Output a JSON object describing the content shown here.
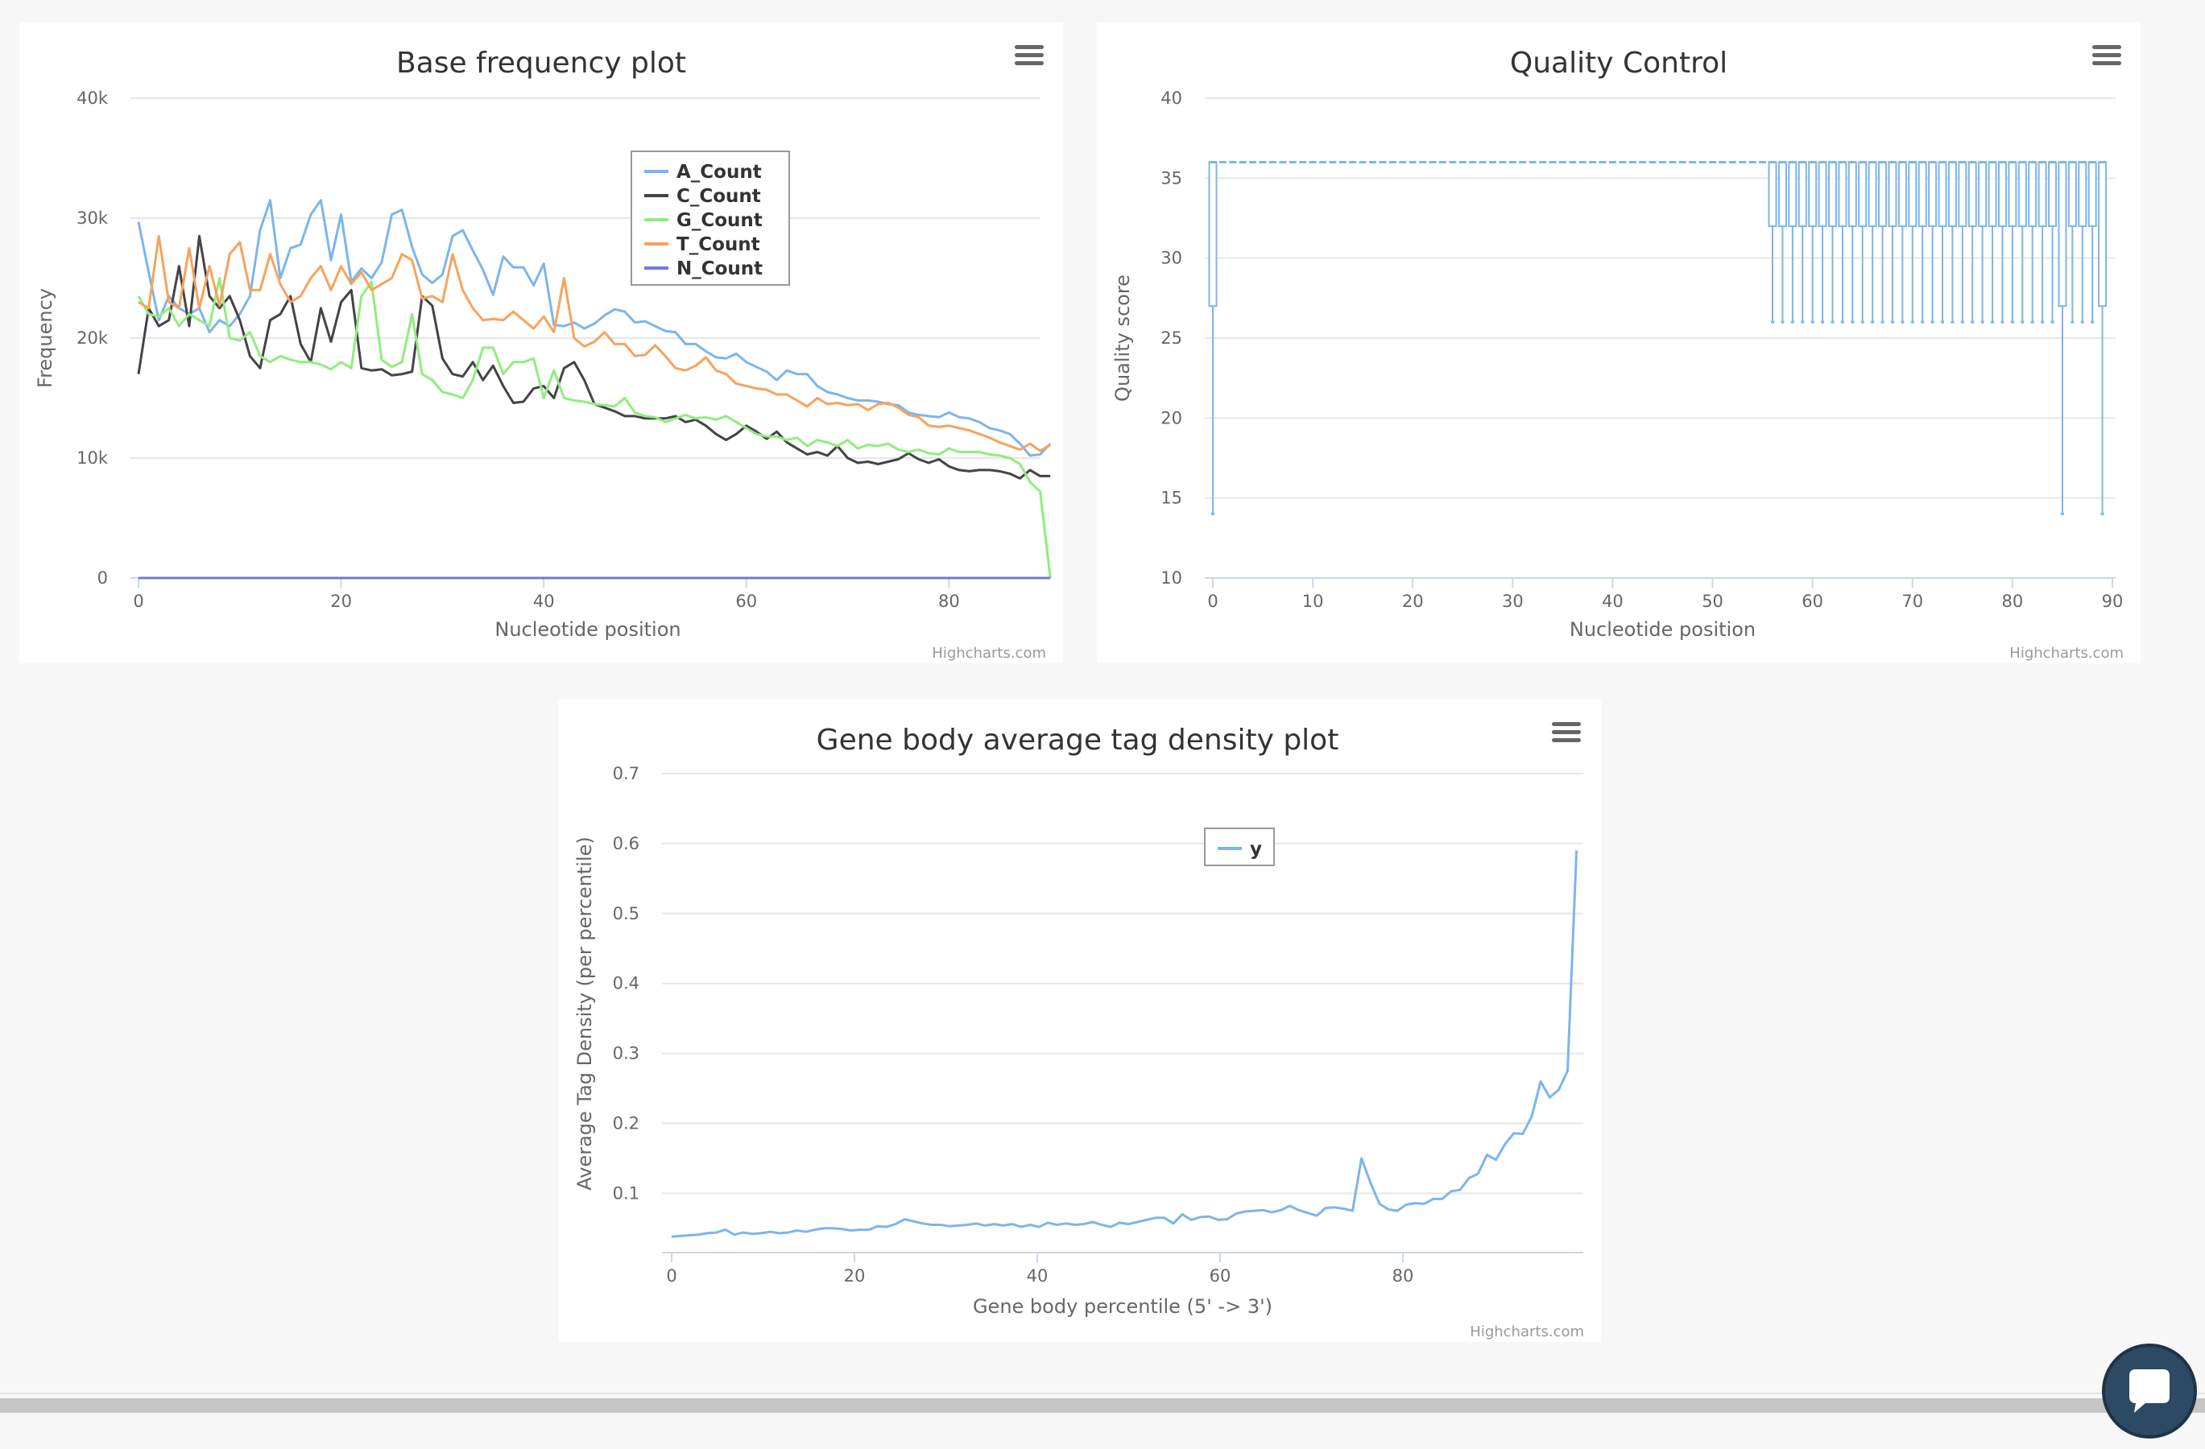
{
  "credits": "Highcharts.com",
  "chart_data": [
    {
      "id": "basefreq",
      "type": "line",
      "title": "Base frequency plot",
      "xlabel": "Nucleotide position",
      "ylabel": "Frequency",
      "xlim": [
        0,
        90
      ],
      "ylim": [
        0,
        40000
      ],
      "xticks": [
        "0",
        "20",
        "40",
        "60",
        "80"
      ],
      "yticks": [
        "0",
        "10k",
        "20k",
        "30k",
        "40k"
      ],
      "legend_position": "top-center",
      "grid": true,
      "series": [
        {
          "name": "A_Count",
          "color": "#7cb5ec",
          "values": [
            29700,
            25500,
            21500,
            23500,
            22500,
            22000,
            22500,
            20500,
            21500,
            21000,
            22000,
            23500,
            29000,
            31500,
            25000,
            27500,
            27800,
            30300,
            31500,
            26500,
            30300,
            24700,
            25800,
            25000,
            26300,
            30300,
            30700,
            27600,
            25300,
            24600,
            25300,
            28500,
            29000,
            27300,
            25700,
            23600,
            26800,
            25900,
            25900,
            24400,
            26200,
            21100,
            21000,
            21300,
            20800,
            21200,
            21900,
            22400,
            22200,
            21300,
            21400,
            21000,
            20600,
            20500,
            19500,
            19500,
            18900,
            18400,
            18300,
            18700,
            18000,
            17600,
            17200,
            16500,
            17300,
            17000,
            17000,
            16000,
            15500,
            15300,
            15000,
            14800,
            14800,
            14700,
            14500,
            14400,
            13800,
            13600,
            13500,
            13400,
            13800,
            13400,
            13300,
            13000,
            12500,
            12300,
            12000,
            11200,
            10200,
            10300,
            11200
          ]
        },
        {
          "name": "C_Count",
          "color": "#434348",
          "values": [
            17000,
            22500,
            21000,
            21500,
            26000,
            21000,
            28500,
            23500,
            22500,
            23500,
            21500,
            18500,
            17500,
            21500,
            22000,
            23500,
            19500,
            18000,
            22500,
            19700,
            23000,
            24000,
            17500,
            17300,
            17400,
            16900,
            17000,
            17200,
            23500,
            22700,
            18300,
            17000,
            16800,
            18000,
            16500,
            17700,
            16000,
            14600,
            14700,
            15800,
            16000,
            15000,
            17500,
            18000,
            16500,
            14500,
            14200,
            13900,
            13500,
            13500,
            13300,
            13300,
            13300,
            13500,
            13000,
            13200,
            12700,
            12000,
            11500,
            12000,
            12700,
            12200,
            11600,
            12200,
            11300,
            10800,
            10300,
            10500,
            10200,
            11000,
            10000,
            9600,
            9700,
            9500,
            9700,
            9900,
            10400,
            9900,
            9600,
            9900,
            9300,
            9000,
            8900,
            9000,
            9000,
            8900,
            8700,
            8300,
            9000,
            8500,
            8500
          ]
        },
        {
          "name": "G_Count",
          "color": "#90ed7d",
          "values": [
            23500,
            22000,
            21800,
            22500,
            21000,
            22000,
            21500,
            21000,
            25000,
            20000,
            19800,
            20500,
            18500,
            18000,
            18500,
            18200,
            18000,
            18000,
            17800,
            17400,
            18000,
            17500,
            23500,
            24700,
            18200,
            17600,
            18000,
            22000,
            17000,
            16500,
            15500,
            15300,
            15000,
            16500,
            19200,
            19200,
            17000,
            18000,
            18000,
            18300,
            15000,
            17300,
            15000,
            14800,
            14700,
            14500,
            14400,
            14300,
            15000,
            13800,
            13500,
            13400,
            13000,
            13300,
            13600,
            13300,
            13400,
            13200,
            13500,
            13000,
            12500,
            12000,
            11800,
            11800,
            11500,
            11700,
            11000,
            11500,
            11300,
            11000,
            11500,
            10800,
            11100,
            11000,
            11200,
            10700,
            10500,
            10700,
            10400,
            10300,
            10800,
            10500,
            10500,
            10500,
            10300,
            10200,
            10000,
            9500,
            8000,
            7200,
            0
          ]
        },
        {
          "name": "T_Count",
          "color": "#f7a35c",
          "values": [
            23000,
            22500,
            28500,
            23000,
            22500,
            27500,
            22500,
            26000,
            22700,
            27000,
            28000,
            24000,
            24000,
            27000,
            24500,
            23000,
            23500,
            25000,
            26000,
            24000,
            26000,
            24500,
            25500,
            24000,
            24500,
            25000,
            27000,
            26500,
            23300,
            23500,
            23000,
            27000,
            24000,
            22500,
            21500,
            21600,
            21500,
            22200,
            21500,
            20800,
            21800,
            20500,
            25000,
            20000,
            19300,
            19700,
            20500,
            19500,
            19500,
            18500,
            18600,
            19400,
            18500,
            17500,
            17300,
            17700,
            18400,
            17300,
            17000,
            16200,
            16000,
            15800,
            15700,
            15300,
            15300,
            14800,
            14300,
            15000,
            14500,
            14600,
            14400,
            14500,
            14000,
            14500,
            14600,
            14200,
            13600,
            13400,
            12700,
            12600,
            12700,
            12500,
            12300,
            12000,
            11700,
            11300,
            11000,
            10700,
            11200,
            10600,
            11100
          ]
        },
        {
          "name": "N_Count",
          "color": "#6f7bd8",
          "values": [
            0,
            0,
            0,
            0,
            0,
            0,
            0,
            0,
            0,
            0,
            0,
            0,
            0,
            0,
            0,
            0,
            0,
            0,
            0,
            0,
            0,
            0,
            0,
            0,
            0,
            0,
            0,
            0,
            0,
            0,
            0,
            0,
            0,
            0,
            0,
            0,
            0,
            0,
            0,
            0,
            0,
            0,
            0,
            0,
            0,
            0,
            0,
            0,
            0,
            0,
            0,
            0,
            0,
            0,
            0,
            0,
            0,
            0,
            0,
            0,
            0,
            0,
            0,
            0,
            0,
            0,
            0,
            0,
            0,
            0,
            0,
            0,
            0,
            0,
            0,
            0,
            0,
            0,
            0,
            0,
            0,
            0,
            0,
            0,
            0,
            0,
            0,
            0,
            0,
            0,
            0
          ]
        }
      ]
    },
    {
      "id": "qc",
      "type": "boxplot",
      "title": "Quality Control",
      "xlabel": "Nucleotide position",
      "ylabel": "Quality score",
      "xlim": [
        0,
        90
      ],
      "ylim": [
        10,
        40
      ],
      "xticks": [
        "0",
        "10",
        "20",
        "30",
        "40",
        "50",
        "60",
        "70",
        "80",
        "90"
      ],
      "yticks": [
        "10",
        "15",
        "20",
        "25",
        "30",
        "35",
        "40"
      ],
      "grid": true,
      "color": "#7cb5ec",
      "series": [
        {
          "positions": "0",
          "low": 14,
          "q1": 27,
          "median": 36,
          "q3": 36,
          "high": 36
        },
        {
          "positions": "1-55",
          "low": 36,
          "q1": 36,
          "median": 36,
          "q3": 36,
          "high": 36
        },
        {
          "positions": "56-84",
          "low": 26,
          "q1": 32,
          "median": 36,
          "q3": 36,
          "high": 36
        },
        {
          "positions": "85",
          "low": 14,
          "q1": 27,
          "median": 36,
          "q3": 36,
          "high": 36
        },
        {
          "positions": "86-88",
          "low": 26,
          "q1": 32,
          "median": 36,
          "q3": 36,
          "high": 36
        },
        {
          "positions": "89",
          "low": 14,
          "q1": 27,
          "median": 36,
          "q3": 36,
          "high": 36
        }
      ]
    },
    {
      "id": "gene",
      "type": "line",
      "title": "Gene body average tag density plot",
      "xlabel": "Gene body percentile (5' -> 3')",
      "ylabel": "Average Tag Density (per percentile)",
      "xlim": [
        0,
        100
      ],
      "ylim": [
        0.03,
        0.7
      ],
      "xticks": [
        "0",
        "20",
        "40",
        "60",
        "80"
      ],
      "yticks": [
        "0.1",
        "0.2",
        "0.3",
        "0.4",
        "0.5",
        "0.6",
        "0.7"
      ],
      "legend_position": "top-center",
      "grid": true,
      "series": [
        {
          "name": "y",
          "color": "#7cb5ec",
          "values": [
            0.038,
            0.039,
            0.04,
            0.041,
            0.043,
            0.044,
            0.048,
            0.041,
            0.044,
            0.042,
            0.043,
            0.045,
            0.043,
            0.044,
            0.047,
            0.045,
            0.048,
            0.05,
            0.05,
            0.049,
            0.047,
            0.048,
            0.048,
            0.053,
            0.052,
            0.056,
            0.063,
            0.06,
            0.057,
            0.055,
            0.055,
            0.053,
            0.054,
            0.055,
            0.057,
            0.054,
            0.056,
            0.054,
            0.056,
            0.052,
            0.055,
            0.052,
            0.058,
            0.055,
            0.057,
            0.055,
            0.056,
            0.059,
            0.055,
            0.052,
            0.058,
            0.056,
            0.059,
            0.062,
            0.065,
            0.065,
            0.057,
            0.07,
            0.062,
            0.066,
            0.067,
            0.062,
            0.063,
            0.071,
            0.074,
            0.075,
            0.076,
            0.073,
            0.076,
            0.082,
            0.076,
            0.072,
            0.068,
            0.079,
            0.08,
            0.078,
            0.075,
            0.15,
            0.115,
            0.085,
            0.077,
            0.075,
            0.084,
            0.086,
            0.085,
            0.092,
            0.092,
            0.103,
            0.105,
            0.122,
            0.128,
            0.155,
            0.148,
            0.17,
            0.186,
            0.185,
            0.21,
            0.26,
            0.237,
            0.248,
            0.275,
            0.59
          ]
        }
      ]
    }
  ]
}
